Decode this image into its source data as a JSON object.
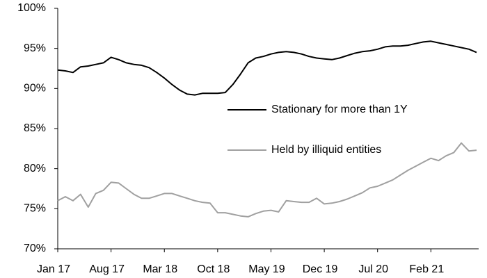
{
  "chart_data": {
    "type": "line",
    "categories": [
      "Jan 17",
      null,
      null,
      null,
      null,
      null,
      null,
      "Aug 17",
      null,
      null,
      null,
      null,
      null,
      null,
      "Mar 18",
      null,
      null,
      null,
      null,
      null,
      null,
      "Oct 18",
      null,
      null,
      null,
      null,
      null,
      null,
      "May 19",
      null,
      null,
      null,
      null,
      null,
      null,
      "Dec 19",
      null,
      null,
      null,
      null,
      null,
      null,
      "Jul 20",
      null,
      null,
      null,
      null,
      null,
      null,
      "Feb 21",
      null,
      null,
      null,
      null,
      null,
      null
    ],
    "series": [
      {
        "name": "Stationary for more than 1Y",
        "color": "#000000",
        "values": [
          92.3,
          92.2,
          92.0,
          92.7,
          92.8,
          93.0,
          93.2,
          93.9,
          93.6,
          93.2,
          93.0,
          92.9,
          92.6,
          92.0,
          91.3,
          90.5,
          89.8,
          89.3,
          89.2,
          89.4,
          89.4,
          89.4,
          89.5,
          90.5,
          91.8,
          93.2,
          93.8,
          94.0,
          94.3,
          94.5,
          94.6,
          94.5,
          94.3,
          94.0,
          93.8,
          93.7,
          93.6,
          93.8,
          94.1,
          94.4,
          94.6,
          94.7,
          94.9,
          95.2,
          95.3,
          95.3,
          95.4,
          95.6,
          95.8,
          95.9,
          95.7,
          95.5,
          95.3,
          95.1,
          94.9,
          94.5
        ]
      },
      {
        "name": "Held by illiquid entities",
        "color": "#a0a0a0",
        "values": [
          76.0,
          76.5,
          76.0,
          76.8,
          75.2,
          76.9,
          77.3,
          78.3,
          78.2,
          77.5,
          76.8,
          76.3,
          76.3,
          76.6,
          76.9,
          76.9,
          76.6,
          76.3,
          76.0,
          75.8,
          75.7,
          74.5,
          74.5,
          74.3,
          74.1,
          74.0,
          74.4,
          74.7,
          74.8,
          74.6,
          76.0,
          75.9,
          75.8,
          75.8,
          76.3,
          75.6,
          75.7,
          75.9,
          76.2,
          76.6,
          77.0,
          77.6,
          77.8,
          78.2,
          78.6,
          79.2,
          79.8,
          80.3,
          80.8,
          81.3,
          81.0,
          81.6,
          82.0,
          83.2,
          82.2,
          82.3
        ]
      }
    ],
    "ylim": [
      70,
      100
    ],
    "yticks": [
      {
        "value": 70,
        "label": "70%"
      },
      {
        "value": 75,
        "label": "75%"
      },
      {
        "value": 80,
        "label": "80%"
      },
      {
        "value": 85,
        "label": "85%"
      },
      {
        "value": 90,
        "label": "90%"
      },
      {
        "value": 95,
        "label": "95%"
      },
      {
        "value": 100,
        "label": "100%"
      }
    ],
    "grid": false,
    "legend": "right"
  }
}
